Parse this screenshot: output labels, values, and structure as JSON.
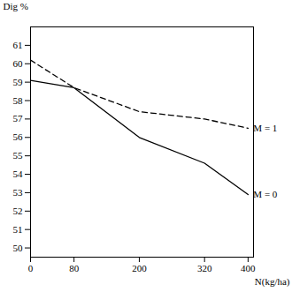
{
  "chart_data": {
    "type": "line",
    "x_label": "N(kg/ha)",
    "y_label": "Dig %",
    "x": [
      0,
      80,
      200,
      320,
      400
    ],
    "series": [
      {
        "name": "M = 1",
        "color": "#000000",
        "line_style": "dashed",
        "values": [
          60.2,
          58.7,
          57.4,
          57.0,
          56.5
        ]
      },
      {
        "name": "M = 0",
        "color": "#000000",
        "line_style": "solid",
        "values": [
          59.1,
          58.7,
          56.0,
          54.6,
          52.9
        ]
      }
    ],
    "xlim": [
      0,
      410
    ],
    "ylim": [
      49.5,
      62
    ],
    "xticks": [
      0,
      80,
      200,
      320,
      400
    ],
    "yticks": [
      50,
      51,
      52,
      53,
      54,
      55,
      56,
      57,
      58,
      59,
      60,
      61
    ],
    "grid": false
  }
}
